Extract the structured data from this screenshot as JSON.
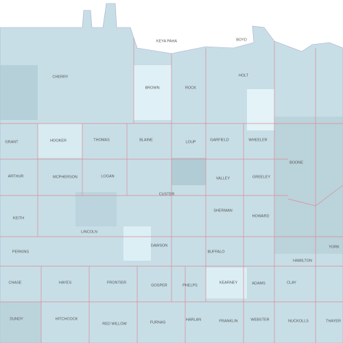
{
  "map": {
    "counties": [
      "KEYA PAHA",
      "BOYD",
      "CHERRY",
      "BROWN",
      "ROCK",
      "HOLT",
      "GRANT",
      "HOOKER",
      "THOMAS",
      "BLAINE",
      "LOUP",
      "GARFIELD",
      "WHEELER",
      "BOONE",
      "ARTHUR",
      "MCPHERSON",
      "LOGAN",
      "CUSTER",
      "VALLEY",
      "GREELEY",
      "KEITH",
      "LINCOLN",
      "SHERMAN",
      "HOWARD",
      "DAWSON",
      "BUFFALO",
      "HAMILTON",
      "YORK",
      "PERKINS",
      "CHASE",
      "HAYES",
      "FRONTIER",
      "GOSPER",
      "PHELPS",
      "KEARNEY",
      "ADAMS",
      "CLAY",
      "DUNDY",
      "HITCHCOCK",
      "RED WILLOW",
      "FURNAS",
      "HARLAN",
      "FRANKLIN",
      "WEBSTER",
      "NUCKOLLS",
      "THAYER"
    ]
  }
}
